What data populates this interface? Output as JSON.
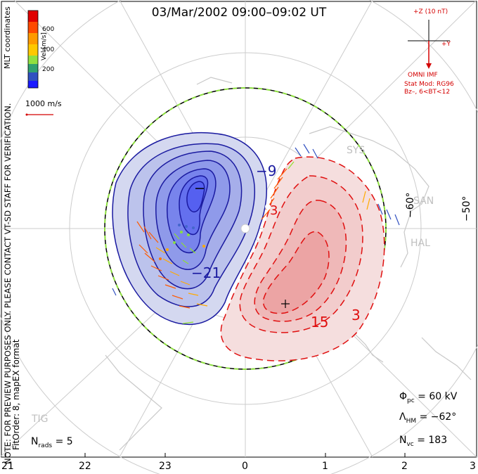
{
  "title": "03/Mar/2002 09:00–09:02 UT",
  "side_note": "NOTE: FOR PREVIEW PURPOSES ONLY. PLEASE CONTACT VT-SD STAFF FOR VERIFICATION.",
  "fit_note": "FitOrder: 8, mapEX format",
  "coords": "MLT coordinates",
  "colorbar": {
    "label": "Vel [m/s]",
    "ticks": [
      "600",
      "400",
      "200"
    ],
    "colors": [
      "#e00000",
      "#ff6a00",
      "#ffb400",
      "#a0e030",
      "#30b050",
      "#3050c0",
      "#1a1aff"
    ]
  },
  "scale_vector": "1000 m/s",
  "imf": {
    "z_label": "+Z (10 nT)",
    "y_label": "+Y",
    "source": "OMNI IMF",
    "model": "Stat Mod: RG96",
    "condition": "Bz–, 6<BT<12"
  },
  "lat_labels": [
    "−60°",
    "−50°"
  ],
  "stations": [
    "SYS",
    "SAN",
    "HAL",
    "TIG"
  ],
  "contours": {
    "neg_labels": [
      "−9",
      "−21"
    ],
    "pos_labels": [
      "3",
      "15",
      "3"
    ]
  },
  "stats": {
    "phi_pc": "= 60 kV",
    "lambda_hm": "= −62°",
    "n_vc": "= 183",
    "n_rads": "= 5"
  },
  "mlt_ticks": [
    "21",
    "22",
    "23",
    "0",
    "1",
    "2",
    "3"
  ]
}
